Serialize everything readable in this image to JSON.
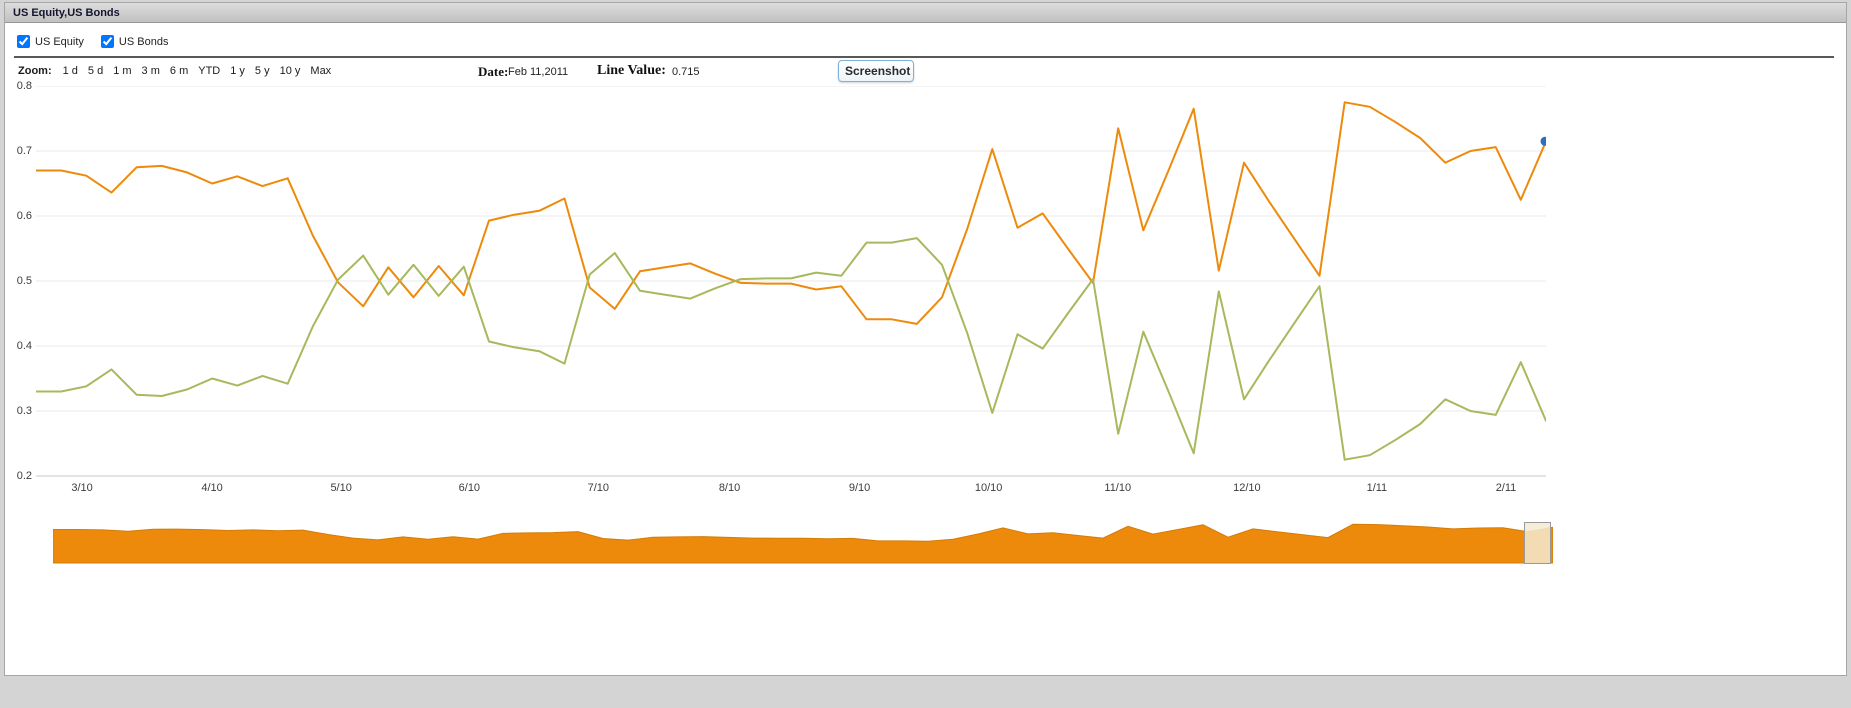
{
  "window": {
    "title": "US Equity,US Bonds"
  },
  "legend": {
    "items": [
      {
        "label": "US Equity",
        "checked": true,
        "color": "#ee8a0b"
      },
      {
        "label": "US Bonds",
        "checked": true,
        "color": "#a6b95c"
      }
    ]
  },
  "toolbar": {
    "zoom_label": "Zoom:",
    "zoom_options": [
      "1 d",
      "5 d",
      "1 m",
      "3 m",
      "6 m",
      "YTD",
      "1 y",
      "5 y",
      "10 y",
      "Max"
    ],
    "date_label": "Date:",
    "date_value": "Feb 11,2011",
    "line_value_label": "Line Value:",
    "line_value": "0.715",
    "screenshot_label": "Screenshot"
  },
  "chart_data": {
    "type": "line",
    "title": "US Equity,US Bonds",
    "xlabel": "",
    "ylabel": "",
    "ylim": [
      0.2,
      0.8
    ],
    "yticks": [
      0.8,
      0.7,
      0.6,
      0.5,
      0.4,
      0.3,
      0.2
    ],
    "grid": "horizontal",
    "x_description": "weekly samples, Mar 2010 - Feb 2011",
    "xticks": [
      {
        "label": "3/10",
        "pos": 0.0305
      },
      {
        "label": "4/10",
        "pos": 0.1166
      },
      {
        "label": "5/10",
        "pos": 0.2021
      },
      {
        "label": "6/10",
        "pos": 0.287
      },
      {
        "label": "7/10",
        "pos": 0.3724
      },
      {
        "label": "8/10",
        "pos": 0.4593
      },
      {
        "label": "9/10",
        "pos": 0.5454
      },
      {
        "label": "10/10",
        "pos": 0.6309
      },
      {
        "label": "11/10",
        "pos": 0.7164
      },
      {
        "label": "12/10",
        "pos": 0.8019
      },
      {
        "label": "1/11",
        "pos": 0.888
      },
      {
        "label": "2/11",
        "pos": 0.9735
      }
    ],
    "series": [
      {
        "name": "US Equity",
        "color": "#ee8a0b",
        "values": [
          0.67,
          0.67,
          0.662,
          0.636,
          0.675,
          0.677,
          0.667,
          0.65,
          0.661,
          0.646,
          0.658,
          0.57,
          0.498,
          0.461,
          0.521,
          0.475,
          0.523,
          0.478,
          0.593,
          0.602,
          0.608,
          0.627,
          0.49,
          0.457,
          0.515,
          0.521,
          0.527,
          0.511,
          0.497,
          0.496,
          0.496,
          0.487,
          0.492,
          0.441,
          0.441,
          0.434,
          0.475,
          0.58,
          0.703,
          0.582,
          0.604,
          0.55,
          0.497,
          0.735,
          0.578,
          0.67,
          0.765,
          0.516,
          0.682,
          0.622,
          0.565,
          0.508,
          0.775,
          0.768,
          0.745,
          0.72,
          0.682,
          0.7,
          0.706,
          0.625,
          0.715
        ]
      },
      {
        "name": "US Bonds",
        "color": "#a6b95c",
        "values": [
          0.33,
          0.33,
          0.338,
          0.364,
          0.325,
          0.323,
          0.333,
          0.35,
          0.339,
          0.354,
          0.342,
          0.43,
          0.502,
          0.539,
          0.479,
          0.525,
          0.477,
          0.522,
          0.407,
          0.398,
          0.392,
          0.373,
          0.51,
          0.543,
          0.485,
          0.479,
          0.473,
          0.489,
          0.503,
          0.504,
          0.504,
          0.513,
          0.508,
          0.559,
          0.559,
          0.566,
          0.525,
          0.42,
          0.297,
          0.418,
          0.396,
          0.45,
          0.503,
          0.265,
          0.422,
          0.33,
          0.235,
          0.484,
          0.318,
          0.378,
          0.435,
          0.492,
          0.225,
          0.232,
          0.255,
          0.28,
          0.318,
          0.3,
          0.294,
          0.375,
          0.285
        ]
      }
    ],
    "marker": {
      "series": "US Equity",
      "value": 0.715,
      "color": "#2f6fbe"
    },
    "navigator": {
      "series": "US Equity",
      "fill": "#ee8a0b"
    }
  }
}
